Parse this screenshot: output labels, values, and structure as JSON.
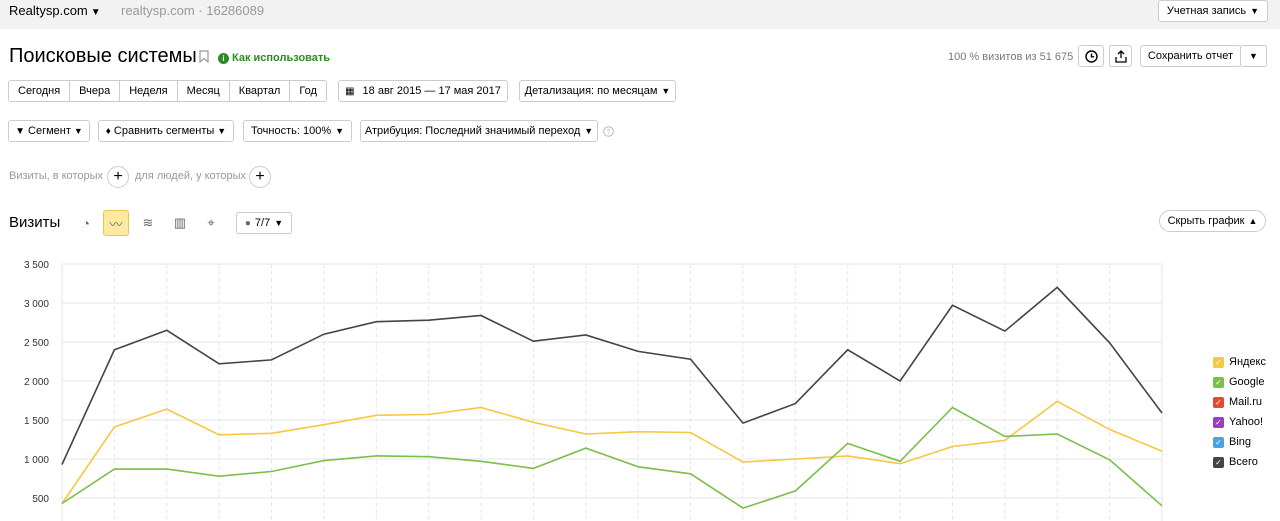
{
  "header": {
    "site": "Realtysp.com",
    "counter": "realtysp.com · 16286089",
    "account": "Учетная запись"
  },
  "report": {
    "title": "Поисковые системы",
    "howto": "Как использовать",
    "visits_summary": "100 % визитов из 51 675",
    "save": "Сохранить отчет"
  },
  "periods": [
    "Сегодня",
    "Вчера",
    "Неделя",
    "Месяц",
    "Квартал",
    "Год"
  ],
  "date_range": "18 авг 2015 — 17 мая 2017",
  "detail": "Детализация: по месяцам",
  "filters": {
    "segment": "Сегмент",
    "compare": "Сравнить сегменты",
    "accuracy": "Точность: 100%",
    "attribution": "Атрибуция: Последний значимый переход"
  },
  "conditions": {
    "visits": "Визиты, в которых",
    "people": "для людей, у которых"
  },
  "chart_section": {
    "label": "Визиты",
    "series_count": "7/7",
    "hide_chart": "Скрыть график"
  },
  "chart_data": {
    "type": "line",
    "ylim": [
      250,
      3500
    ],
    "yticks": [
      500,
      1000,
      1500,
      2000,
      2500,
      3000,
      3500
    ],
    "ytick_labels": [
      "500",
      "1 000",
      "1 500",
      "2 000",
      "2 500",
      "3 000",
      "3 500"
    ],
    "x_count": 22,
    "series": [
      {
        "name": "Яндекс",
        "color": "#f5c842",
        "values": [
          430,
          1410,
          1640,
          1310,
          1330,
          1440,
          1560,
          1570,
          1660,
          1470,
          1320,
          1350,
          1340,
          960,
          1000,
          1040,
          940,
          1160,
          1240,
          1740,
          1380,
          1100
        ]
      },
      {
        "name": "Google",
        "color": "#7bbf4a",
        "values": [
          430,
          870,
          870,
          780,
          840,
          980,
          1040,
          1030,
          970,
          880,
          1140,
          900,
          810,
          370,
          590,
          1200,
          970,
          1660,
          1290,
          1320,
          990,
          400
        ]
      },
      {
        "name": "Mail.ru",
        "color": "#e64a2e",
        "values": []
      },
      {
        "name": "Yahoo!",
        "color": "#9b3ec0",
        "values": []
      },
      {
        "name": "Bing",
        "color": "#4ca1e0",
        "values": []
      },
      {
        "name": "Всего",
        "color": "#444444",
        "values": [
          930,
          2400,
          2650,
          2220,
          2270,
          2600,
          2760,
          2780,
          2840,
          2510,
          2590,
          2380,
          2280,
          1460,
          1710,
          2400,
          2000,
          2970,
          2640,
          3200,
          2490,
          1590
        ]
      }
    ]
  }
}
